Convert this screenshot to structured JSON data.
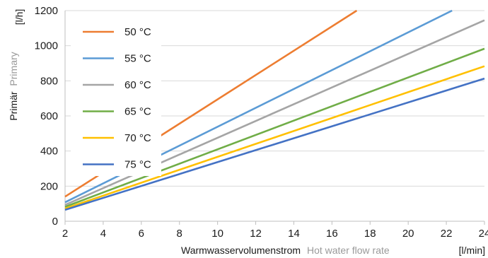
{
  "chart_data": {
    "type": "line",
    "x_label_de": "Warmwasservolumenstrom",
    "x_label_en": "Hot water flow rate",
    "x_unit": "[l/min]",
    "y_label_de": "Primär",
    "y_label_en": "Primary",
    "y_unit": "[l/h]",
    "xlim": [
      2,
      24
    ],
    "ylim": [
      0,
      1200
    ],
    "x_ticks": [
      2,
      4,
      6,
      8,
      10,
      12,
      14,
      16,
      18,
      20,
      22,
      24
    ],
    "y_ticks": [
      0,
      200,
      400,
      600,
      800,
      1000,
      1200
    ],
    "grid": "horizontal",
    "legend_position": "top-left",
    "series": [
      {
        "name": "50 °C",
        "color": "#ED7D31",
        "points": [
          [
            2,
            140
          ],
          [
            17.3,
            1200
          ]
        ]
      },
      {
        "name": "55 °C",
        "color": "#5B9BD5",
        "points": [
          [
            2,
            108
          ],
          [
            22.3,
            1200
          ]
        ]
      },
      {
        "name": "60 °C",
        "color": "#A5A5A5",
        "points": [
          [
            2,
            93
          ],
          [
            24,
            1145
          ]
        ]
      },
      {
        "name": "65 °C",
        "color": "#70AD47",
        "points": [
          [
            2,
            82
          ],
          [
            24,
            983
          ]
        ]
      },
      {
        "name": "70 °C",
        "color": "#FFC000",
        "points": [
          [
            2,
            72
          ],
          [
            24,
            883
          ]
        ]
      },
      {
        "name": "75 °C",
        "color": "#4472C4",
        "points": [
          [
            2,
            65
          ],
          [
            24,
            813
          ]
        ]
      }
    ]
  }
}
